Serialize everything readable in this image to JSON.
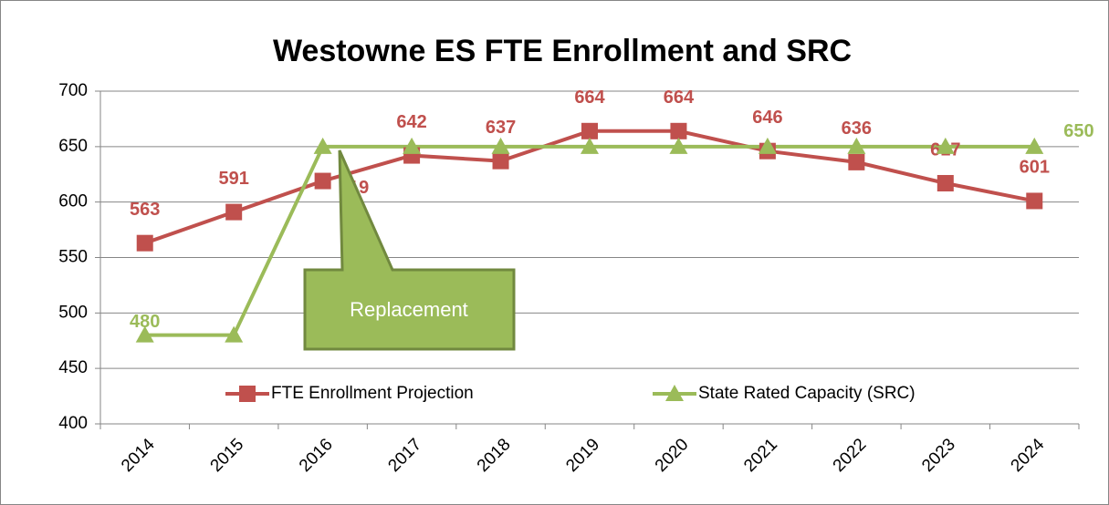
{
  "chart_data": {
    "type": "line",
    "title": "Westowne ES FTE Enrollment and SRC",
    "categories": [
      "2014",
      "2015",
      "2016",
      "2017",
      "2018",
      "2019",
      "2020",
      "2021",
      "2022",
      "2023",
      "2024"
    ],
    "series": [
      {
        "name": "FTE Enrollment Projection",
        "color": "#c0504d",
        "marker": "square",
        "values": [
          563,
          591,
          619,
          642,
          637,
          664,
          664,
          646,
          636,
          617,
          601
        ],
        "value_labels": [
          "563",
          "591",
          "619",
          "642",
          "637",
          "664",
          "664",
          "646",
          "636",
          "617",
          "601"
        ]
      },
      {
        "name": "State Rated Capacity (SRC)",
        "color": "#9bbb59",
        "marker": "triangle",
        "values": [
          480,
          480,
          650,
          650,
          650,
          650,
          650,
          650,
          650,
          650,
          650
        ],
        "value_labels": [
          "480",
          null,
          null,
          null,
          null,
          null,
          null,
          null,
          null,
          null,
          "650"
        ]
      }
    ],
    "annotation": "Replacement",
    "ylim": [
      400,
      700
    ],
    "yticks": [
      400,
      450,
      500,
      550,
      600,
      650,
      700
    ],
    "grid": true,
    "legend": "bottom"
  }
}
